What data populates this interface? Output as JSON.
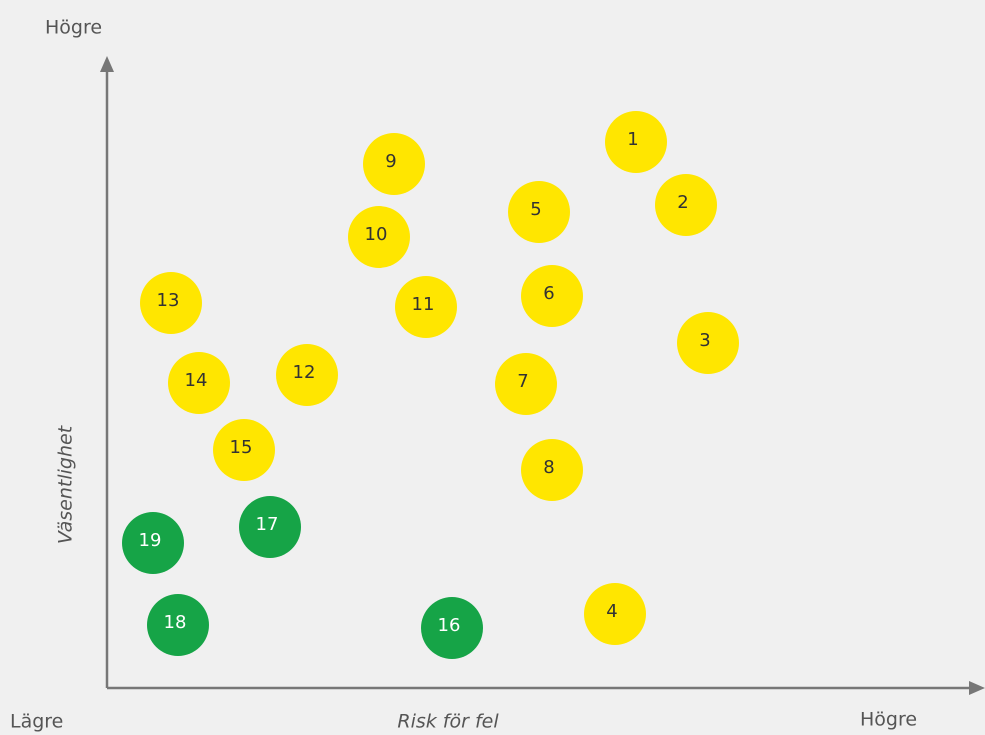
{
  "axes": {
    "y_top_label": "Högre",
    "y_title": "Väsentlighet",
    "origin_label": "Lägre",
    "x_title": "Risk för fel",
    "x_right_label": "Högre"
  },
  "nodes": [
    {
      "label": "1",
      "color": "#ffe600"
    },
    {
      "label": "2",
      "color": "#ffe600"
    },
    {
      "label": "3",
      "color": "#ffe600"
    },
    {
      "label": "4",
      "color": "#ffe600"
    },
    {
      "label": "5",
      "color": "#ffe600"
    },
    {
      "label": "6",
      "color": "#ffe600"
    },
    {
      "label": "7",
      "color": "#ffe600"
    },
    {
      "label": "8",
      "color": "#ffe600"
    },
    {
      "label": "9",
      "color": "#ffe600"
    },
    {
      "label": "10",
      "color": "#ffe600"
    },
    {
      "label": "11",
      "color": "#ffe600"
    },
    {
      "label": "12",
      "color": "#ffe600"
    },
    {
      "label": "13",
      "color": "#ffe600"
    },
    {
      "label": "14",
      "color": "#ffe600"
    },
    {
      "label": "15",
      "color": "#ffe600"
    },
    {
      "label": "16",
      "color": "#16a447"
    },
    {
      "label": "17",
      "color": "#16a447"
    },
    {
      "label": "18",
      "color": "#16a447"
    },
    {
      "label": "19",
      "color": "#16a447"
    }
  ]
}
